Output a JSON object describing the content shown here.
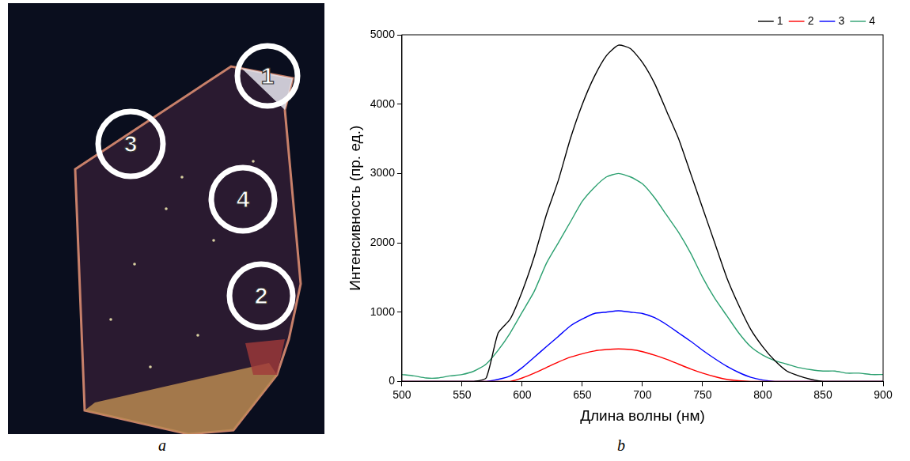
{
  "photo": {
    "label": "a",
    "markers": [
      "1",
      "2",
      "3",
      "4"
    ]
  },
  "chart_data": {
    "label": "b",
    "type": "line",
    "x_label": "Длина волны (нм)",
    "y_label": "Интенсивность (пр. ед.)",
    "xlim": [
      500,
      900
    ],
    "xticks": [
      500,
      550,
      600,
      650,
      700,
      750,
      800,
      850,
      900
    ],
    "ylim": [
      0,
      5000
    ],
    "yticks": [
      0,
      1000,
      2000,
      3000,
      4000,
      5000
    ],
    "grid": false,
    "legend": "upper right",
    "x": [
      500,
      510,
      520,
      530,
      540,
      550,
      560,
      570,
      580,
      590,
      600,
      610,
      620,
      630,
      640,
      650,
      660,
      670,
      680,
      690,
      700,
      710,
      720,
      730,
      740,
      750,
      760,
      770,
      780,
      790,
      800,
      810,
      820,
      830,
      840,
      850,
      860,
      870,
      880,
      890,
      900
    ],
    "series": [
      {
        "name": "1",
        "color": "#000000",
        "values": [
          0,
          0,
          0,
          0,
          0,
          0,
          0,
          50,
          700,
          900,
          1300,
          1800,
          2400,
          2900,
          3500,
          4000,
          4400,
          4700,
          4850,
          4800,
          4600,
          4300,
          3900,
          3500,
          3000,
          2500,
          2000,
          1500,
          1100,
          750,
          500,
          300,
          150,
          80,
          30,
          0,
          0,
          0,
          0,
          0,
          0
        ]
      },
      {
        "name": "2",
        "color": "#ff0000",
        "values": [
          0,
          0,
          0,
          0,
          0,
          0,
          0,
          0,
          0,
          0,
          50,
          120,
          200,
          280,
          350,
          400,
          440,
          460,
          470,
          460,
          430,
          380,
          320,
          250,
          180,
          120,
          70,
          30,
          10,
          0,
          0,
          0,
          0,
          0,
          0,
          0,
          0,
          0,
          0,
          0,
          0
        ]
      },
      {
        "name": "3",
        "color": "#0000ff",
        "values": [
          0,
          0,
          0,
          0,
          0,
          0,
          0,
          0,
          30,
          80,
          200,
          350,
          500,
          650,
          800,
          900,
          980,
          1000,
          1020,
          1000,
          980,
          920,
          820,
          700,
          580,
          450,
          330,
          220,
          130,
          60,
          20,
          0,
          0,
          0,
          0,
          0,
          0,
          0,
          0,
          0,
          0
        ]
      },
      {
        "name": "4",
        "color": "#2ca070",
        "values": [
          100,
          80,
          50,
          50,
          80,
          100,
          150,
          250,
          450,
          700,
          1000,
          1300,
          1700,
          2000,
          2300,
          2600,
          2800,
          2950,
          3000,
          2950,
          2850,
          2650,
          2400,
          2150,
          1850,
          1500,
          1200,
          950,
          700,
          500,
          380,
          300,
          250,
          200,
          170,
          150,
          150,
          120,
          120,
          100,
          100
        ]
      }
    ]
  }
}
